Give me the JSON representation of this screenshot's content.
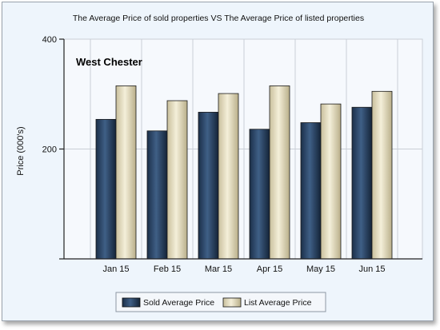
{
  "chart_data": {
    "type": "bar",
    "title": "The Average Price of sold properties VS The Average Price of listed properties",
    "annotation": "West Chester",
    "ylabel": "Price (000's)",
    "xlabel": "",
    "ylim": [
      0,
      400
    ],
    "yticks": [
      200,
      400
    ],
    "categories": [
      "Jan 15",
      "Feb 15",
      "Mar 15",
      "Apr 15",
      "May 15",
      "Jun 15"
    ],
    "series": [
      {
        "name": "Sold Average Price",
        "values": [
          254,
          233,
          267,
          236,
          248,
          276
        ],
        "color": "#223c5c"
      },
      {
        "name": "List Average Price",
        "values": [
          315,
          288,
          301,
          315,
          282,
          305
        ],
        "color": "#e4dcbc"
      }
    ],
    "grid": true,
    "legend_position": "bottom-center"
  },
  "colors": {
    "plot_background": "#f6f9fd",
    "frame_background": "#eef5fc",
    "grid": "#c9ced6",
    "axis": "#222222"
  }
}
